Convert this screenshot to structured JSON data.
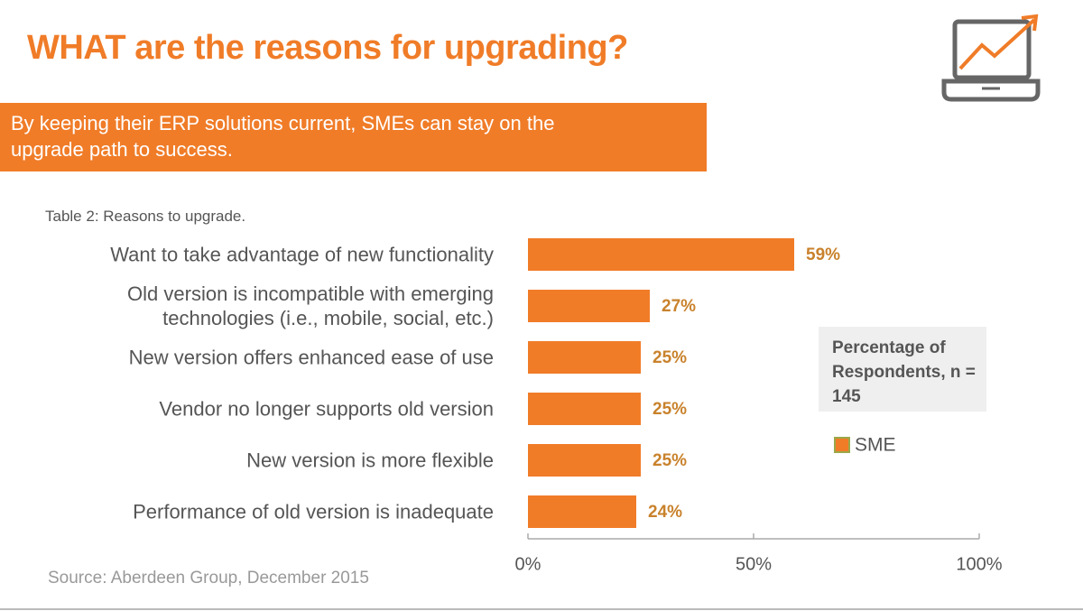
{
  "chart_data": {
    "type": "bar",
    "orientation": "horizontal",
    "title": "WHAT are the reasons for upgrading?",
    "subtitle": "By keeping their ERP solutions current, SMEs can stay on the upgrade path to success.",
    "caption": "Table 2: Reasons to upgrade.",
    "source": "Source: Aberdeen Group, December 2015",
    "legend_title": "Percentage of Respondents, n = 145",
    "categories": [
      "Want to take advantage of new functionality",
      "Old version is incompatible with emerging technologies (i.e., mobile, social, etc.)",
      "New version offers enhanced ease of use",
      "Vendor no longer supports old version",
      "New version is more flexible",
      "Performance of old version is inadequate"
    ],
    "series": [
      {
        "name": "SME",
        "color": "#f07c28",
        "values": [
          59,
          27,
          25,
          25,
          25,
          24
        ],
        "value_labels": [
          "59%",
          "27%",
          "25%",
          "25%",
          "25%",
          "24%"
        ]
      }
    ],
    "xlim": [
      0,
      100
    ],
    "xticks": [
      {
        "value": 0,
        "label": "0%"
      },
      {
        "value": 50,
        "label": "50%"
      },
      {
        "value": 100,
        "label": "100%"
      }
    ]
  }
}
